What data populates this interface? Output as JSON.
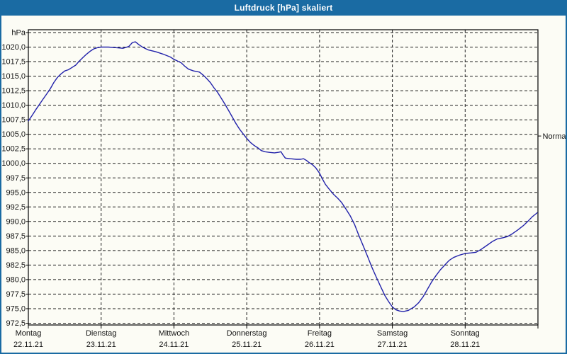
{
  "window": {
    "title": "Luftdruck [hPa] skaliert"
  },
  "colors": {
    "titlebar": "#1a6ba3",
    "frame": "#1a6ba3",
    "bg": "#fcfcf5",
    "curve": "#2222aa",
    "titletext": "#ffffff",
    "grid": "#1f1f1f"
  },
  "chart_data": {
    "type": "line",
    "title": "Luftdruck [hPa] skaliert",
    "ylabel": "hPa",
    "grid": "dashed",
    "y_axis": {
      "min": 972.5,
      "max": 1022.5,
      "step": 2.5,
      "top_tick_label": "hPa",
      "tick_labels": [
        "1020,0",
        "1017,5",
        "1015,0",
        "1012,5",
        "1010,0",
        "1007,5",
        "1005,0",
        "1002,5",
        "1000,0",
        "997,5",
        "995,0",
        "992,5",
        "990,0",
        "987,5",
        "985,0",
        "982,5",
        "980,0",
        "977,5",
        "975,0",
        "972,5"
      ]
    },
    "x_axis": {
      "span_days": 7,
      "days": [
        {
          "name": "Montag",
          "date": "22.11.21"
        },
        {
          "name": "Dienstag",
          "date": "23.11.21"
        },
        {
          "name": "Mittwoch",
          "date": "24.11.21"
        },
        {
          "name": "Donnerstag",
          "date": "25.11.21"
        },
        {
          "name": "Freitag",
          "date": "26.11.21"
        },
        {
          "name": "Samstag",
          "date": "27.11.21"
        },
        {
          "name": "Sonntag",
          "date": "28.11.21"
        }
      ]
    },
    "normal_marker": {
      "label": "Normal",
      "value": 1004.7
    },
    "series": [
      {
        "name": "Luftdruck",
        "points": [
          [
            0.0,
            1007.3
          ],
          [
            0.05,
            1008.2
          ],
          [
            0.1,
            1009.2
          ],
          [
            0.15,
            1010.1
          ],
          [
            0.2,
            1011.0
          ],
          [
            0.25,
            1011.9
          ],
          [
            0.3,
            1012.8
          ],
          [
            0.35,
            1013.9
          ],
          [
            0.4,
            1014.8
          ],
          [
            0.45,
            1015.4
          ],
          [
            0.5,
            1015.9
          ],
          [
            0.55,
            1016.1
          ],
          [
            0.6,
            1016.5
          ],
          [
            0.65,
            1016.9
          ],
          [
            0.7,
            1017.6
          ],
          [
            0.75,
            1018.2
          ],
          [
            0.8,
            1018.8
          ],
          [
            0.85,
            1019.3
          ],
          [
            0.9,
            1019.7
          ],
          [
            0.95,
            1019.9
          ],
          [
            1.0,
            1020.0
          ],
          [
            1.1,
            1020.0
          ],
          [
            1.2,
            1019.9
          ],
          [
            1.3,
            1019.8
          ],
          [
            1.38,
            1020.1
          ],
          [
            1.43,
            1020.8
          ],
          [
            1.47,
            1020.9
          ],
          [
            1.52,
            1020.4
          ],
          [
            1.58,
            1019.9
          ],
          [
            1.65,
            1019.5
          ],
          [
            1.75,
            1019.2
          ],
          [
            1.85,
            1018.8
          ],
          [
            1.95,
            1018.3
          ],
          [
            2.0,
            1017.9
          ],
          [
            2.05,
            1017.6
          ],
          [
            2.1,
            1017.3
          ],
          [
            2.15,
            1016.7
          ],
          [
            2.2,
            1016.2
          ],
          [
            2.27,
            1015.9
          ],
          [
            2.35,
            1015.7
          ],
          [
            2.4,
            1015.2
          ],
          [
            2.45,
            1014.6
          ],
          [
            2.5,
            1013.9
          ],
          [
            2.55,
            1013.0
          ],
          [
            2.6,
            1012.2
          ],
          [
            2.65,
            1011.2
          ],
          [
            2.7,
            1010.2
          ],
          [
            2.75,
            1009.1
          ],
          [
            2.8,
            1008.0
          ],
          [
            2.85,
            1006.9
          ],
          [
            2.9,
            1005.9
          ],
          [
            2.95,
            1005.1
          ],
          [
            3.0,
            1004.3
          ],
          [
            3.05,
            1003.6
          ],
          [
            3.1,
            1003.1
          ],
          [
            3.15,
            1002.7
          ],
          [
            3.2,
            1002.2
          ],
          [
            3.25,
            1002.0
          ],
          [
            3.3,
            1001.9
          ],
          [
            3.38,
            1001.8
          ],
          [
            3.44,
            1001.9
          ],
          [
            3.47,
            1002.0
          ],
          [
            3.5,
            1001.4
          ],
          [
            3.53,
            1000.9
          ],
          [
            3.6,
            1000.8
          ],
          [
            3.68,
            1000.7
          ],
          [
            3.74,
            1000.7
          ],
          [
            3.78,
            1000.8
          ],
          [
            3.82,
            1000.5
          ],
          [
            3.86,
            1000.1
          ],
          [
            3.9,
            999.8
          ],
          [
            3.95,
            999.2
          ],
          [
            4.0,
            998.3
          ],
          [
            4.04,
            997.3
          ],
          [
            4.08,
            996.4
          ],
          [
            4.13,
            995.6
          ],
          [
            4.19,
            994.7
          ],
          [
            4.25,
            994.0
          ],
          [
            4.3,
            993.3
          ],
          [
            4.36,
            992.2
          ],
          [
            4.42,
            991.0
          ],
          [
            4.48,
            989.5
          ],
          [
            4.54,
            987.6
          ],
          [
            4.6,
            985.8
          ],
          [
            4.66,
            984.0
          ],
          [
            4.72,
            982.1
          ],
          [
            4.78,
            980.4
          ],
          [
            4.84,
            978.8
          ],
          [
            4.9,
            977.2
          ],
          [
            4.95,
            976.2
          ],
          [
            5.0,
            975.3
          ],
          [
            5.05,
            974.8
          ],
          [
            5.1,
            974.6
          ],
          [
            5.15,
            974.5
          ],
          [
            5.22,
            974.7
          ],
          [
            5.3,
            975.3
          ],
          [
            5.36,
            976.0
          ],
          [
            5.42,
            977.0
          ],
          [
            5.48,
            978.3
          ],
          [
            5.54,
            979.6
          ],
          [
            5.6,
            980.7
          ],
          [
            5.66,
            981.7
          ],
          [
            5.72,
            982.5
          ],
          [
            5.78,
            983.3
          ],
          [
            5.84,
            983.8
          ],
          [
            5.92,
            984.2
          ],
          [
            6.0,
            984.5
          ],
          [
            6.08,
            984.6
          ],
          [
            6.15,
            984.7
          ],
          [
            6.22,
            985.2
          ],
          [
            6.3,
            985.9
          ],
          [
            6.38,
            986.6
          ],
          [
            6.44,
            987.0
          ],
          [
            6.52,
            987.2
          ],
          [
            6.58,
            987.4
          ],
          [
            6.65,
            987.9
          ],
          [
            6.72,
            988.5
          ],
          [
            6.8,
            989.3
          ],
          [
            6.86,
            990.0
          ],
          [
            6.92,
            990.8
          ],
          [
            6.96,
            991.2
          ],
          [
            6.99,
            991.5
          ]
        ]
      }
    ]
  }
}
